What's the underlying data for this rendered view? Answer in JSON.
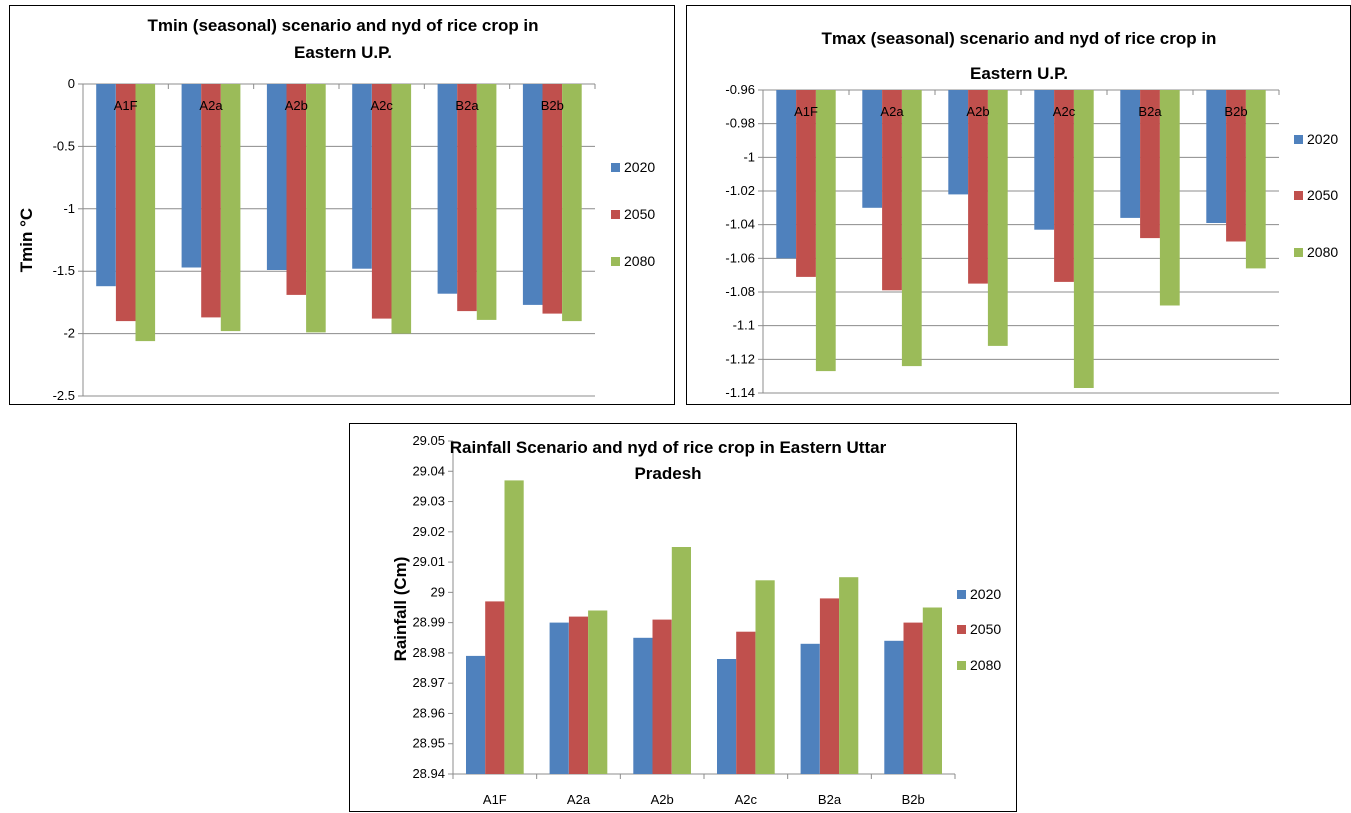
{
  "chart_data": [
    {
      "type": "bar",
      "title": [
        "Tmin (seasonal) scenario and nyd of rice crop in",
        "Eastern U.P."
      ],
      "xlabel": "",
      "ylabel": "Tmin °C",
      "ylim": [
        -2.5,
        0
      ],
      "yticks": [
        0,
        -0.5,
        -1,
        -1.5,
        -2,
        -2.5
      ],
      "ytick_labels": [
        "0",
        "-0.5",
        "-1",
        "-1.5",
        "-2",
        "-2.5"
      ],
      "categories": [
        "A1F",
        "A2a",
        "A2b",
        "A2c",
        "B2a",
        "B2b"
      ],
      "category_labels_inside": true,
      "grid": "horizontal",
      "legend": "right",
      "series": [
        {
          "name": "2020",
          "color": "#4f81bd",
          "values": [
            -1.62,
            -1.47,
            -1.49,
            -1.48,
            -1.68,
            -1.77
          ]
        },
        {
          "name": "2050",
          "color": "#c0504d",
          "values": [
            -1.9,
            -1.87,
            -1.69,
            -1.88,
            -1.82,
            -1.84
          ]
        },
        {
          "name": "2080",
          "color": "#9bbb59",
          "values": [
            -2.06,
            -1.98,
            -1.99,
            -2.0,
            -1.89,
            -1.9
          ]
        }
      ]
    },
    {
      "type": "bar",
      "title": [
        "Tmax (seasonal) scenario and nyd of rice crop in",
        "Eastern U.P."
      ],
      "xlabel": "",
      "ylabel": "",
      "ylim": [
        -1.14,
        -0.96
      ],
      "yticks": [
        -0.96,
        -0.98,
        -1,
        -1.02,
        -1.04,
        -1.06,
        -1.08,
        -1.1,
        -1.12,
        -1.14
      ],
      "ytick_labels": [
        "-0.96",
        "-0.98",
        "-1",
        "-1.02",
        "-1.04",
        "-1.06",
        "-1.08",
        "-1.1",
        "-1.12",
        "-1.14"
      ],
      "categories": [
        "A1F",
        "A2a",
        "A2b",
        "A2c",
        "B2a",
        "B2b"
      ],
      "category_labels_inside": true,
      "grid": "horizontal",
      "legend": "right",
      "series": [
        {
          "name": "2020",
          "color": "#4f81bd",
          "values": [
            -1.06,
            -1.03,
            -1.022,
            -1.043,
            -1.036,
            -1.039
          ]
        },
        {
          "name": "2050",
          "color": "#c0504d",
          "values": [
            -1.071,
            -1.079,
            -1.075,
            -1.074,
            -1.048,
            -1.05
          ]
        },
        {
          "name": "2080",
          "color": "#9bbb59",
          "values": [
            -1.127,
            -1.124,
            -1.112,
            -1.137,
            -1.088,
            -1.066
          ]
        }
      ]
    },
    {
      "type": "bar",
      "title": [
        "Rainfall Scenario and nyd of rice crop in Eastern Uttar",
        "Pradesh"
      ],
      "xlabel": "",
      "ylabel": "Rainfall (Cm)",
      "ylim": [
        28.94,
        29.05
      ],
      "yticks": [
        29.05,
        29.04,
        29.03,
        29.02,
        29.01,
        29,
        28.99,
        28.98,
        28.97,
        28.96,
        28.95,
        28.94
      ],
      "ytick_labels": [
        "29.05",
        "29.04",
        "29.03",
        "29.02",
        "29.01",
        "29",
        "28.99",
        "28.98",
        "28.97",
        "28.96",
        "28.95",
        "28.94"
      ],
      "categories": [
        "A1F",
        "A2a",
        "A2b",
        "A2c",
        "B2a",
        "B2b"
      ],
      "category_labels_inside": false,
      "grid": "none",
      "legend": "right",
      "series": [
        {
          "name": "2020",
          "color": "#4f81bd",
          "values": [
            28.979,
            28.99,
            28.985,
            28.978,
            28.983,
            28.984
          ]
        },
        {
          "name": "2050",
          "color": "#c0504d",
          "values": [
            28.997,
            28.992,
            28.991,
            28.987,
            28.998,
            28.99
          ]
        },
        {
          "name": "2080",
          "color": "#9bbb59",
          "values": [
            29.037,
            28.994,
            29.015,
            29.004,
            29.005,
            28.995
          ]
        }
      ]
    }
  ]
}
